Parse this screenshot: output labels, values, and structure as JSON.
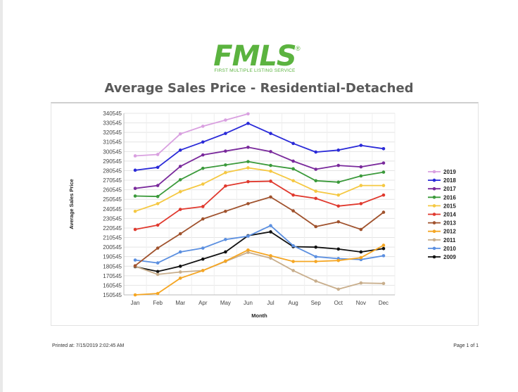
{
  "header": {
    "logo_text": "FMLS",
    "logo_registered": "®",
    "logo_subtitle": "FIRST MULTIPLE LISTING SERVICE",
    "logo_color": "#5bb33f"
  },
  "footer": {
    "printed_at": "Printed at: 7/15/2019 2:02:45 AM",
    "page_info": "Page 1 of 1"
  },
  "chart_data": {
    "type": "line",
    "title": "Average Sales Price - Residential-Detached",
    "xlabel": "Month",
    "ylabel": "Average Sales Price",
    "categories": [
      "Jan",
      "Feb",
      "Mar",
      "Apr",
      "May",
      "Jun",
      "Jul",
      "Aug",
      "Sep",
      "Oct",
      "Nov",
      "Dec"
    ],
    "yticks": [
      150545,
      160545,
      170545,
      180545,
      190545,
      200545,
      210545,
      220545,
      230545,
      240545,
      250545,
      260545,
      270545,
      280545,
      290545,
      300545,
      310545,
      320545,
      330545,
      340545
    ],
    "ylim": [
      150545,
      340545
    ],
    "grid": true,
    "legend_position": "right",
    "series": [
      {
        "name": "2019",
        "color": "#d9a0e0",
        "values": [
          296000,
          297500,
          319000,
          327000,
          333500,
          340000,
          null,
          null,
          null,
          null,
          null,
          null
        ]
      },
      {
        "name": "2018",
        "color": "#2a2ad8",
        "values": [
          281000,
          284000,
          302000,
          310500,
          319500,
          330000,
          319500,
          309000,
          300000,
          302000,
          307000,
          303500
        ]
      },
      {
        "name": "2017",
        "color": "#7a2a9c",
        "values": [
          262000,
          265000,
          285000,
          297000,
          301000,
          305000,
          300500,
          290500,
          282000,
          286000,
          284500,
          288500
        ]
      },
      {
        "name": "2016",
        "color": "#3b9a3b",
        "values": [
          254000,
          253500,
          271000,
          283000,
          286500,
          290000,
          286000,
          282500,
          270000,
          268500,
          275000,
          279000
        ]
      },
      {
        "name": "2015",
        "color": "#f5c842",
        "values": [
          238000,
          246000,
          258500,
          266500,
          278500,
          283500,
          280000,
          270000,
          259000,
          255000,
          265000,
          265000
        ]
      },
      {
        "name": "2014",
        "color": "#e0392e",
        "values": [
          219000,
          223500,
          240000,
          243000,
          264500,
          269000,
          269500,
          255000,
          251500,
          243500,
          246000,
          255000
        ]
      },
      {
        "name": "2013",
        "color": "#a0522d",
        "values": [
          181000,
          199500,
          214500,
          230000,
          238000,
          246000,
          253000,
          238500,
          222000,
          227000,
          219000,
          237000
        ]
      },
      {
        "name": "2012",
        "color": "#f5a623",
        "values": [
          150545,
          152000,
          168000,
          176000,
          186000,
          197500,
          191500,
          185500,
          185500,
          186500,
          189500,
          202500
        ]
      },
      {
        "name": "2011",
        "color": "#c8ae8c",
        "values": [
          180500,
          172000,
          174500,
          176000,
          185500,
          195000,
          189000,
          176000,
          165000,
          156500,
          163000,
          162500
        ]
      },
      {
        "name": "2010",
        "color": "#5b8fe0",
        "values": [
          187000,
          184000,
          195500,
          199500,
          208500,
          212000,
          223000,
          202000,
          190500,
          188500,
          187500,
          191500
        ]
      },
      {
        "name": "2009",
        "color": "#111111",
        "values": [
          180000,
          175000,
          180500,
          188000,
          195500,
          212500,
          216500,
          201000,
          200500,
          198500,
          195500,
          199000
        ]
      }
    ]
  }
}
